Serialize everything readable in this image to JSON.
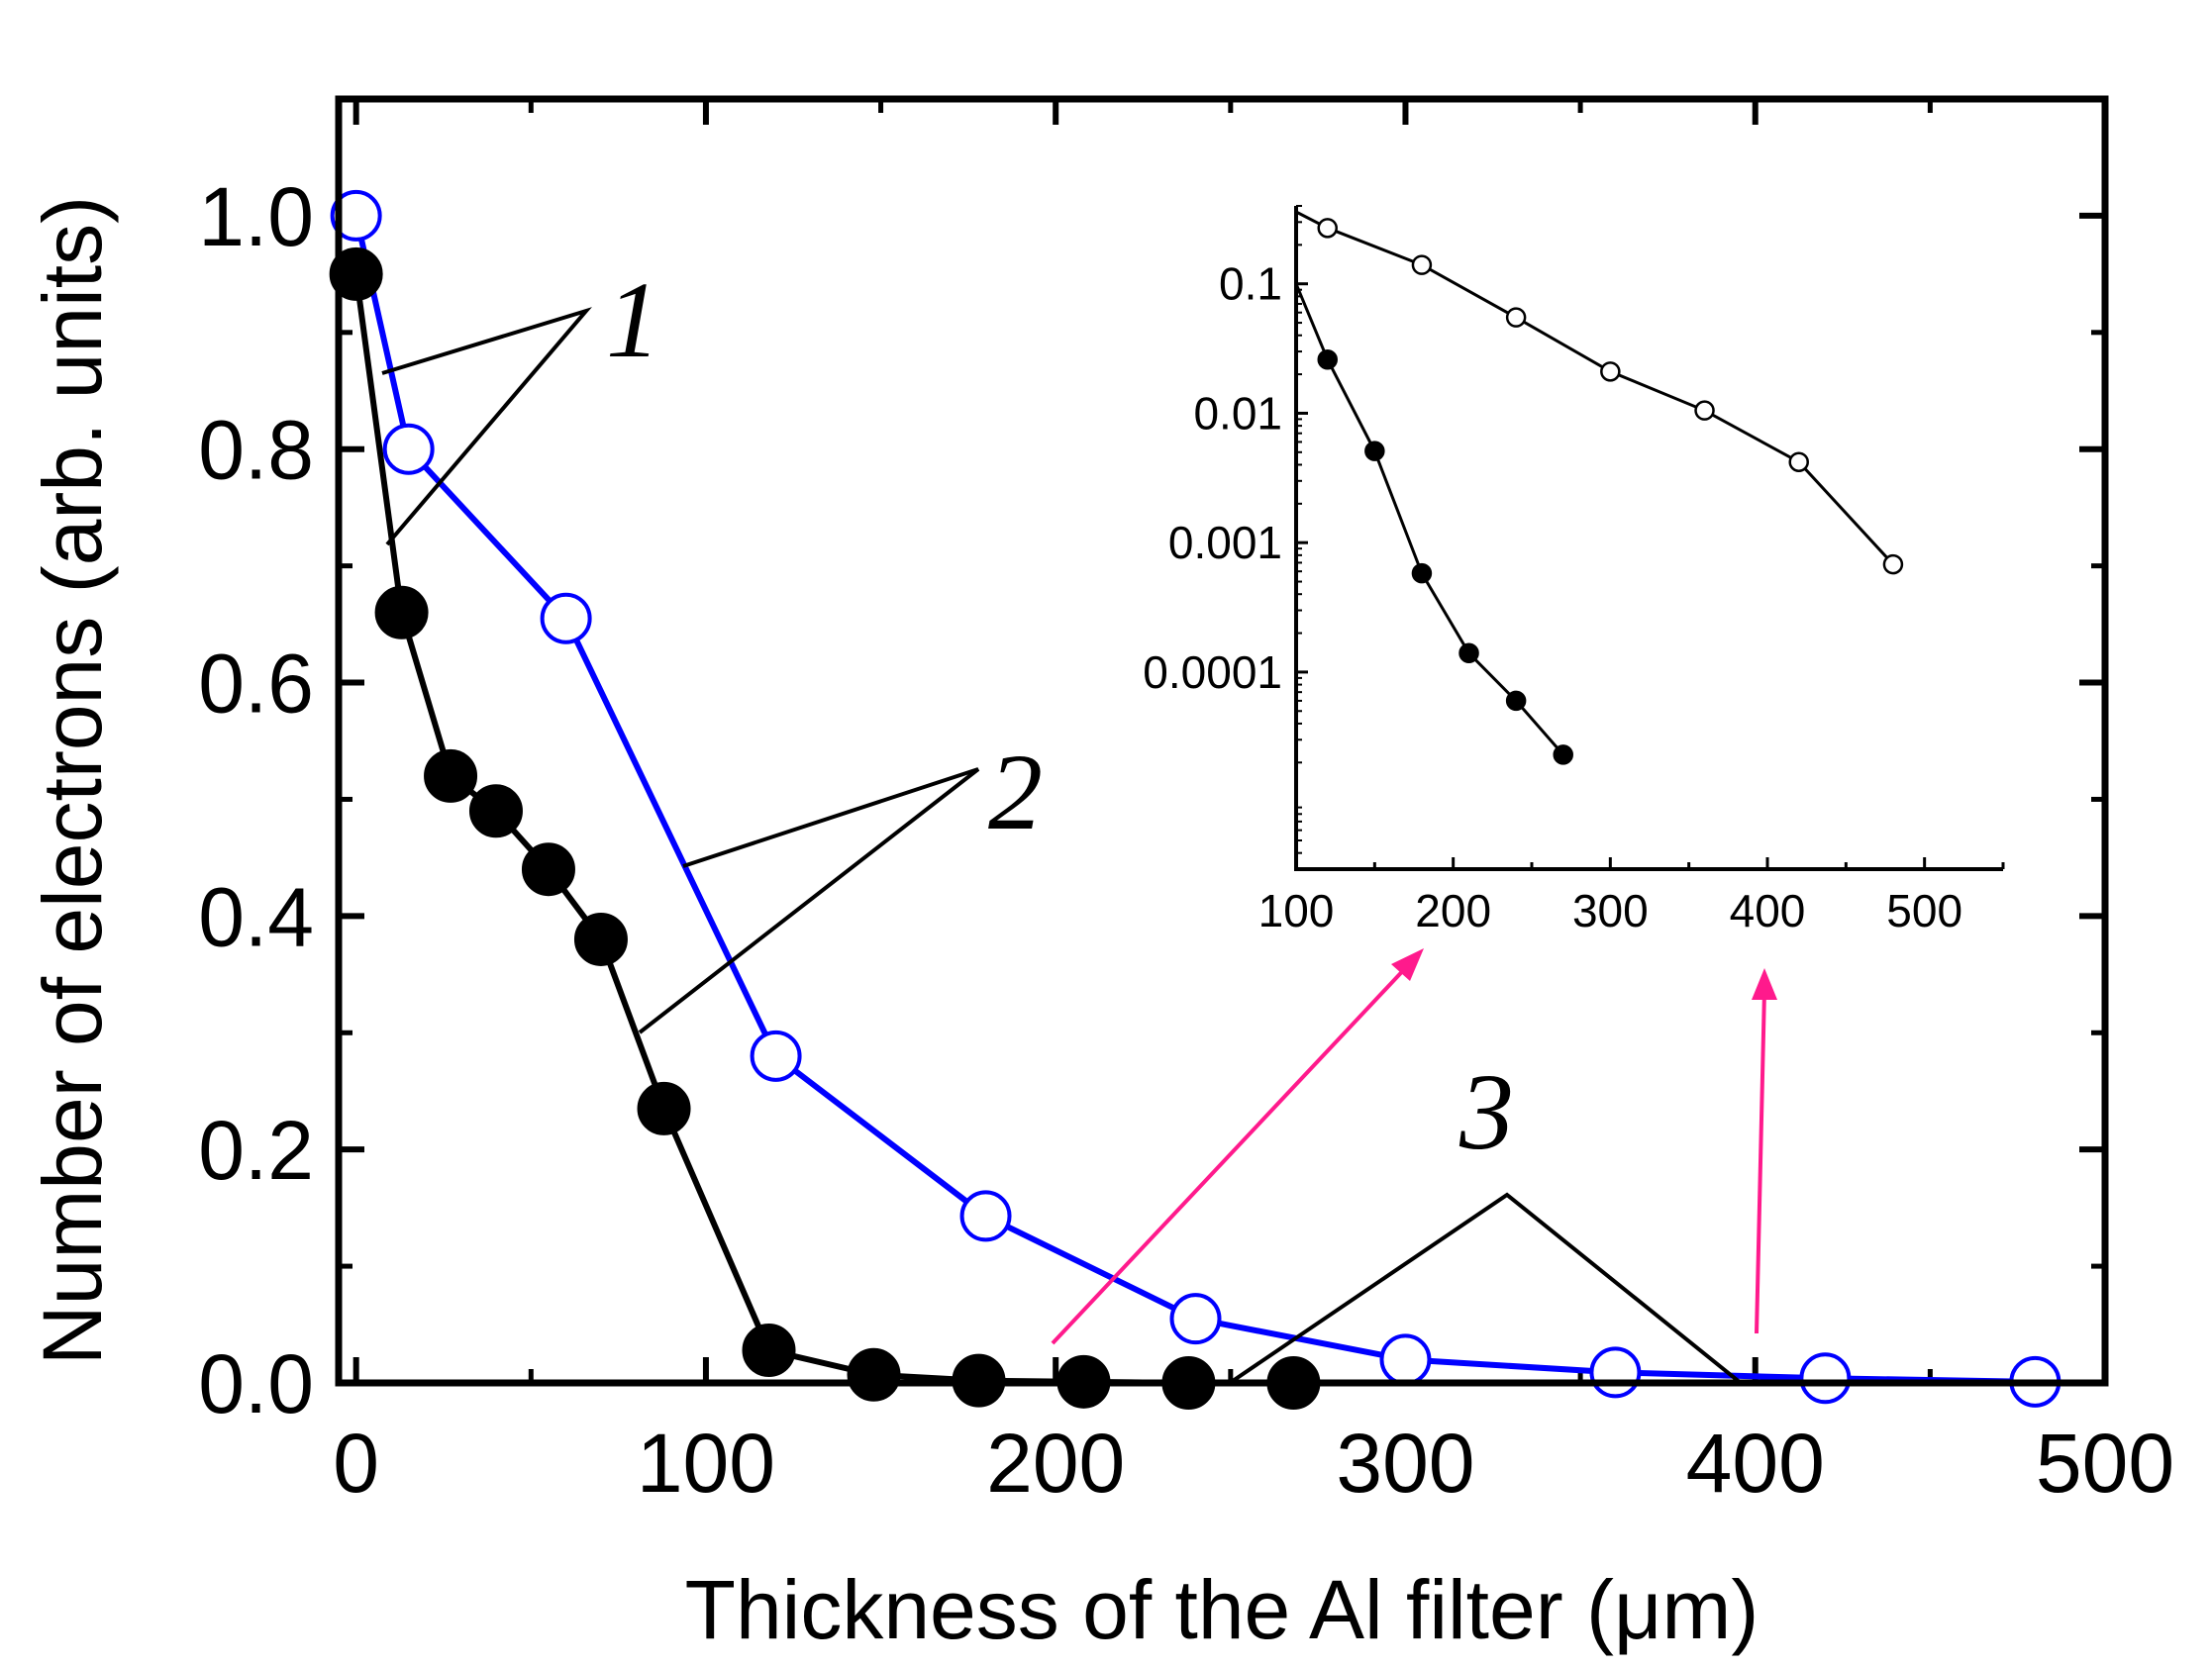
{
  "chart_data": [
    {
      "type": "line",
      "xlabel": "Thickness of the Al filter (μm)",
      "ylabel": "Number of electrons (arb. units)",
      "xlim": [
        -5,
        500
      ],
      "ylim": [
        0,
        1.1
      ],
      "x_ticks": [
        0,
        100,
        200,
        300,
        400,
        500
      ],
      "x_tick_labels": [
        "0",
        "100",
        "200",
        "300",
        "400",
        "500"
      ],
      "y_ticks": [
        0.0,
        0.2,
        0.4,
        0.6,
        0.8,
        1.0
      ],
      "y_tick_labels": [
        "0.0",
        "0.2",
        "0.4",
        "0.6",
        "0.8",
        "1.0"
      ],
      "grid": false,
      "series": [
        {
          "marker": "filled-circle",
          "color": "#000000",
          "x": [
            0,
            13,
            27,
            40,
            55,
            70,
            88,
            118,
            148,
            178,
            208,
            238,
            268
          ],
          "y": [
            0.95,
            0.66,
            0.52,
            0.49,
            0.44,
            0.38,
            0.235,
            0.028,
            0.007,
            0.002,
            0.001,
            0.0,
            0.0
          ]
        },
        {
          "marker": "open-circle",
          "color": "#0000ff",
          "x": [
            0,
            15,
            60,
            120,
            180,
            240,
            300,
            360,
            420,
            480
          ],
          "y": [
            1.0,
            0.8,
            0.655,
            0.28,
            0.143,
            0.055,
            0.02,
            0.009,
            0.004,
            0.001
          ]
        }
      ],
      "annotations": [
        "1",
        "2",
        "3"
      ]
    },
    {
      "type": "line",
      "inset": true,
      "y_scale": "log",
      "xlim": [
        100,
        550
      ],
      "ylim": [
        3e-06,
        0.4
      ],
      "x_ticks": [
        100,
        200,
        300,
        400,
        500
      ],
      "x_tick_labels": [
        "100",
        "200",
        "300",
        "400",
        "500"
      ],
      "y_ticks": [
        0.0001,
        0.001,
        0.01,
        0.1
      ],
      "y_tick_labels": [
        "0.0001",
        "0.001",
        "0.01",
        "0.1"
      ],
      "series": [
        {
          "marker": "open-circle",
          "color": "#000000",
          "x": [
            120,
            180,
            240,
            300,
            360,
            420,
            480
          ],
          "y": [
            0.27,
            0.14,
            0.055,
            0.021,
            0.0105,
            0.0042,
            0.00068
          ]
        },
        {
          "marker": "filled-circle",
          "color": "#000000",
          "x": [
            120,
            150,
            180,
            210,
            240,
            270
          ],
          "y": [
            0.026,
            0.0051,
            0.00058,
            0.00014,
            6e-05,
            2.3e-05
          ]
        }
      ]
    }
  ]
}
